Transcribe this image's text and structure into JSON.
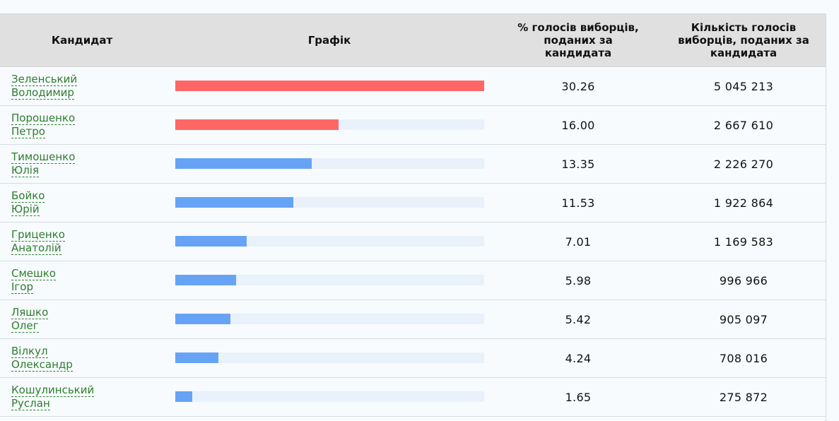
{
  "header": {
    "candidate": "Кандидат",
    "graph": "Графік",
    "percent_lines": [
      "% голосів виборців,",
      "поданих за",
      "кандидата"
    ],
    "votes_lines": [
      "Кількість голосів",
      "виборців, поданих за",
      "кандидата"
    ]
  },
  "colors": {
    "top_two": "#ff6666",
    "others": "#66a3f5",
    "track": "#e9f1fb"
  },
  "chart_data": {
    "type": "bar",
    "categories": [
      "Зеленський Володимир",
      "Порошенко Петро",
      "Тимошенко Юлія",
      "Бойко Юрій",
      "Гриценко Анатолій",
      "Смешко Ігор",
      "Ляшко Олег",
      "Вілкул Олександр",
      "Кошулинський Руслан"
    ],
    "values": [
      30.26,
      16.0,
      13.35,
      11.53,
      7.01,
      5.98,
      5.42,
      4.24,
      1.65
    ],
    "xmax": 30.26
  },
  "rows": [
    {
      "first": "Зеленський",
      "second": "Володимир",
      "pct": "30.26",
      "votes": "5 045 213",
      "highlight": true
    },
    {
      "first": "Порошенко",
      "second": "Петро",
      "pct": "16.00",
      "votes": "2 667 610",
      "highlight": true
    },
    {
      "first": "Тимошенко",
      "second": "Юлія",
      "pct": "13.35",
      "votes": "2 226 270",
      "highlight": false
    },
    {
      "first": "Бойко",
      "second": "Юрій",
      "pct": "11.53",
      "votes": "1 922 864",
      "highlight": false
    },
    {
      "first": "Гриценко",
      "second": "Анатолій",
      "pct": "7.01",
      "votes": "1 169 583",
      "highlight": false
    },
    {
      "first": "Смешко",
      "second": "Ігор",
      "pct": "5.98",
      "votes": "996 966",
      "highlight": false
    },
    {
      "first": "Ляшко",
      "second": "Олег",
      "pct": "5.42",
      "votes": "905 097",
      "highlight": false
    },
    {
      "first": "Вілкул",
      "second": "Олександр",
      "pct": "4.24",
      "votes": "708 016",
      "highlight": false
    },
    {
      "first": "Кошулинський",
      "second": "Руслан",
      "pct": "1.65",
      "votes": "275 872",
      "highlight": false
    }
  ]
}
